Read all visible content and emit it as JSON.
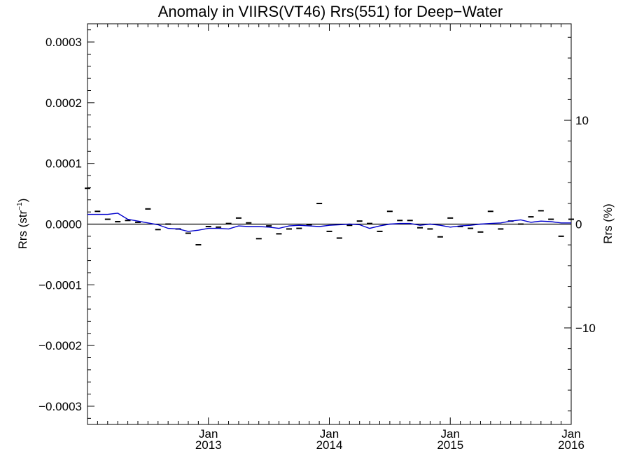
{
  "chart_data": {
    "type": "line",
    "title": "Anomaly in VIIRS(VT46) Rrs(551) for Deep−Water",
    "ylabel_left_main": "Rrs (str",
    "ylabel_left_sup": "−1",
    "ylabel_left_close": ")",
    "ylabel_right": "Rrs (%)",
    "x_range": [
      2012.0,
      2016.0
    ],
    "y_left_range": [
      -0.00033,
      0.00033
    ],
    "y_right_range": [
      -19.3,
      19.3
    ],
    "y_left_ticks": [
      {
        "value": 0.0003,
        "label": "0.0003"
      },
      {
        "value": 0.0002,
        "label": "0.0002"
      },
      {
        "value": 0.0001,
        "label": "0.0001"
      },
      {
        "value": 0.0,
        "label": "0.0000"
      },
      {
        "value": -0.0001,
        "label": "−0.0001"
      },
      {
        "value": -0.0002,
        "label": "−0.0002"
      },
      {
        "value": -0.0003,
        "label": "−0.0003"
      }
    ],
    "y_right_ticks": [
      {
        "value": 10,
        "label": "10"
      },
      {
        "value": 0,
        "label": "0"
      },
      {
        "value": -10,
        "label": "−10"
      }
    ],
    "x_ticks": [
      {
        "value": 2013.0,
        "month": "Jan",
        "year": "2013"
      },
      {
        "value": 2014.0,
        "month": "Jan",
        "year": "2014"
      },
      {
        "value": 2015.0,
        "month": "Jan",
        "year": "2015"
      },
      {
        "value": 2016.0,
        "month": "Jan",
        "year": "2016"
      }
    ],
    "series": [
      {
        "kind": "points",
        "color": "#000000",
        "x": [
          2012.0,
          2012.083,
          2012.167,
          2012.25,
          2012.333,
          2012.417,
          2012.5,
          2012.583,
          2012.667,
          2012.75,
          2012.833,
          2012.917,
          2013.0,
          2013.083,
          2013.167,
          2013.25,
          2013.333,
          2013.417,
          2013.5,
          2013.583,
          2013.667,
          2013.75,
          2013.833,
          2013.917,
          2014.0,
          2014.083,
          2014.167,
          2014.25,
          2014.333,
          2014.417,
          2014.5,
          2014.583,
          2014.667,
          2014.75,
          2014.833,
          2014.917,
          2015.0,
          2015.083,
          2015.167,
          2015.25,
          2015.333,
          2015.417,
          2015.5,
          2015.583,
          2015.667,
          2015.75,
          2015.833,
          2015.917,
          2016.0
        ],
        "y": [
          5.9e-05,
          2.1e-05,
          8e-06,
          4e-06,
          6e-06,
          3e-06,
          2.5e-05,
          -9e-06,
          0.0,
          -8e-06,
          -1.5e-05,
          -3.4e-05,
          -4e-06,
          -5e-06,
          1e-06,
          1e-05,
          2e-06,
          -2.4e-05,
          -3e-06,
          -1.6e-05,
          -8e-06,
          -7e-06,
          -1e-06,
          3.4e-05,
          -1.2e-05,
          -2.3e-05,
          -2e-06,
          5e-06,
          1e-06,
          -1.2e-05,
          2.1e-05,
          6e-06,
          6e-06,
          -6e-06,
          -8e-06,
          -2.1e-05,
          1e-05,
          -4e-06,
          -7e-06,
          -1.3e-05,
          2.1e-05,
          -8e-06,
          5e-06,
          0.0,
          1.2e-05,
          2.2e-05,
          8e-06,
          -2e-05,
          8e-06
        ]
      },
      {
        "kind": "line",
        "color": "#0000cc",
        "x": [
          2012.0,
          2012.083,
          2012.167,
          2012.25,
          2012.333,
          2012.417,
          2012.5,
          2012.583,
          2012.667,
          2012.75,
          2012.833,
          2012.917,
          2013.0,
          2013.083,
          2013.167,
          2013.25,
          2013.333,
          2013.417,
          2013.5,
          2013.583,
          2013.667,
          2013.75,
          2013.833,
          2013.917,
          2014.0,
          2014.083,
          2014.167,
          2014.25,
          2014.333,
          2014.417,
          2014.5,
          2014.583,
          2014.667,
          2014.75,
          2014.833,
          2014.917,
          2015.0,
          2015.083,
          2015.167,
          2015.25,
          2015.333,
          2015.417,
          2015.5,
          2015.583,
          2015.667,
          2015.75,
          2015.833,
          2015.917,
          2016.0
        ],
        "y": [
          1.6e-05,
          1.6e-05,
          1.6e-05,
          1.8e-05,
          8e-06,
          5e-06,
          2e-06,
          -1e-06,
          -7e-06,
          -8e-06,
          -1.2e-05,
          -1e-05,
          -7e-06,
          -7e-06,
          -8e-06,
          -3e-06,
          -4e-06,
          -4e-06,
          -5e-06,
          -7e-06,
          -3e-06,
          -2e-06,
          -3e-06,
          -4e-06,
          -2e-06,
          -1e-06,
          0.0,
          -1e-06,
          -7e-06,
          -3e-06,
          0.0,
          1e-06,
          1e-06,
          -2e-06,
          0.0,
          -2e-06,
          -5e-06,
          -3e-06,
          -2e-06,
          0.0,
          1e-06,
          2e-06,
          5e-06,
          7e-06,
          3e-06,
          5e-06,
          4e-06,
          2e-06,
          2e-06
        ]
      }
    ],
    "reference_line_y": 0.0,
    "grid": false,
    "legend": "none"
  }
}
